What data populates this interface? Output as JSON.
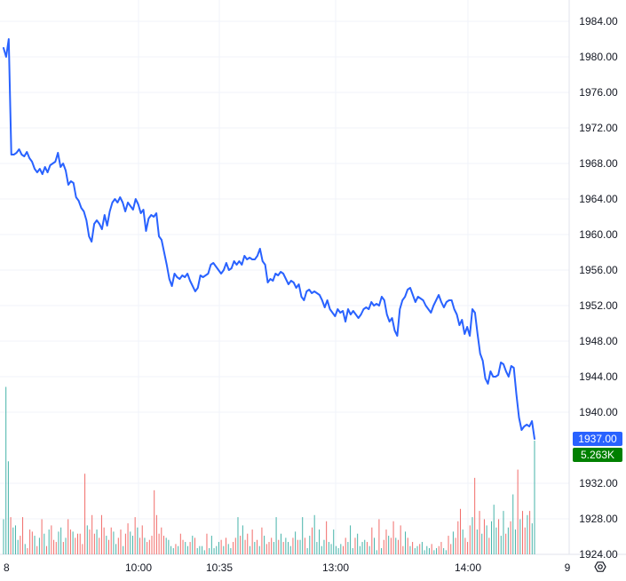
{
  "chart_data": {
    "type": "line",
    "title": "",
    "xlabel": "",
    "ylabel": "",
    "ylim": [
      1924,
      1986
    ],
    "y_ticks": [
      1924,
      1928,
      1932,
      1940,
      1944,
      1948,
      1952,
      1956,
      1960,
      1964,
      1968,
      1972,
      1976,
      1980,
      1984
    ],
    "y_tick_labels": [
      "1924.00",
      "1928.00",
      "1932.00",
      "1940.00",
      "1944.00",
      "1948.00",
      "1952.00",
      "1956.00",
      "1960.00",
      "1964.00",
      "1968.00",
      "1972.00",
      "1976.00",
      "1980.00",
      "1984.00"
    ],
    "x_tick_labels": [
      "8",
      "10:00",
      "10:35",
      "13:00",
      "14:00",
      "9"
    ],
    "grid": true,
    "price_series": {
      "name": "",
      "values": [
        1981.0,
        1980.0,
        1982.0,
        1969.0,
        1969.0,
        1969.2,
        1969.6,
        1969.0,
        1968.8,
        1969.3,
        1968.6,
        1968.2,
        1967.4,
        1967.0,
        1967.4,
        1966.8,
        1967.6,
        1967.0,
        1967.8,
        1968.0,
        1968.2,
        1969.2,
        1967.6,
        1968.0,
        1967.2,
        1965.6,
        1966.0,
        1965.8,
        1964.2,
        1963.8,
        1963.0,
        1962.6,
        1961.6,
        1959.8,
        1959.2,
        1961.2,
        1961.6,
        1961.2,
        1960.6,
        1962.2,
        1961.0,
        1962.6,
        1963.6,
        1964.0,
        1963.6,
        1964.2,
        1963.6,
        1962.6,
        1963.6,
        1963.2,
        1962.8,
        1964.0,
        1963.4,
        1962.4,
        1962.8,
        1960.4,
        1961.8,
        1962.2,
        1962.0,
        1962.4,
        1959.8,
        1959.4,
        1958.0,
        1956.6,
        1955.0,
        1954.2,
        1955.6,
        1955.2,
        1955.0,
        1955.4,
        1955.2,
        1955.6,
        1954.8,
        1954.2,
        1953.6,
        1954.0,
        1955.4,
        1955.2,
        1955.4,
        1955.6,
        1956.6,
        1956.8,
        1956.4,
        1956.0,
        1955.6,
        1956.0,
        1956.8,
        1956.0,
        1956.2,
        1957.0,
        1956.6,
        1957.0,
        1956.6,
        1957.6,
        1957.2,
        1957.4,
        1957.2,
        1957.2,
        1957.6,
        1958.4,
        1957.0,
        1956.6,
        1954.6,
        1955.0,
        1954.8,
        1955.6,
        1955.4,
        1955.8,
        1955.6,
        1955.0,
        1954.4,
        1954.8,
        1954.6,
        1954.0,
        1954.4,
        1953.0,
        1952.6,
        1953.6,
        1953.8,
        1953.4,
        1953.6,
        1953.4,
        1953.2,
        1952.6,
        1951.8,
        1952.6,
        1951.6,
        1951.2,
        1950.8,
        1951.6,
        1951.2,
        1951.4,
        1950.2,
        1951.6,
        1951.0,
        1951.4,
        1951.0,
        1950.6,
        1951.0,
        1951.6,
        1951.8,
        1951.6,
        1952.4,
        1952.0,
        1952.2,
        1952.0,
        1953.0,
        1952.6,
        1951.0,
        1950.2,
        1950.6,
        1949.2,
        1948.6,
        1951.6,
        1952.6,
        1953.0,
        1953.8,
        1954.0,
        1953.2,
        1952.4,
        1953.0,
        1952.8,
        1952.6,
        1952.0,
        1951.6,
        1951.2,
        1952.0,
        1952.6,
        1953.2,
        1952.4,
        1951.8,
        1952.4,
        1952.6,
        1952.6,
        1951.6,
        1951.0,
        1949.8,
        1950.4,
        1948.8,
        1949.6,
        1948.6,
        1951.6,
        1951.2,
        1948.8,
        1946.6,
        1945.8,
        1943.8,
        1943.2,
        1944.6,
        1944.0,
        1944.0,
        1944.2,
        1945.6,
        1945.4,
        1944.6,
        1944.0,
        1945.2,
        1945.0,
        1942.0,
        1939.4,
        1938.0,
        1938.4,
        1938.6,
        1938.4,
        1939.0,
        1937.0
      ]
    },
    "volume_series": {
      "name": "",
      "bars": [
        [
          3.4,
          "g"
        ],
        [
          16.2,
          "g"
        ],
        [
          9.0,
          "g"
        ],
        [
          3.6,
          "r"
        ],
        [
          2.6,
          "g"
        ],
        [
          2.8,
          "g"
        ],
        [
          1.4,
          "g"
        ],
        [
          1.8,
          "r"
        ],
        [
          3.6,
          "r"
        ],
        [
          1.0,
          "g"
        ],
        [
          0.6,
          "r"
        ],
        [
          2.4,
          "r"
        ],
        [
          2.2,
          "r"
        ],
        [
          1.8,
          "g"
        ],
        [
          0.8,
          "r"
        ],
        [
          1.6,
          "g"
        ],
        [
          3.4,
          "r"
        ],
        [
          2.0,
          "g"
        ],
        [
          0.8,
          "r"
        ],
        [
          2.4,
          "g"
        ],
        [
          2.8,
          "r"
        ],
        [
          1.4,
          "r"
        ],
        [
          1.2,
          "r"
        ],
        [
          2.2,
          "g"
        ],
        [
          2.6,
          "g"
        ],
        [
          1.2,
          "r"
        ],
        [
          1.6,
          "g"
        ],
        [
          3.4,
          "r"
        ],
        [
          2.4,
          "r"
        ],
        [
          2.2,
          "g"
        ],
        [
          1.6,
          "r"
        ],
        [
          2.0,
          "r"
        ],
        [
          2.0,
          "r"
        ],
        [
          1.0,
          "r"
        ],
        [
          7.8,
          "r"
        ],
        [
          2.8,
          "g"
        ],
        [
          2.4,
          "r"
        ],
        [
          3.8,
          "r"
        ],
        [
          2.0,
          "r"
        ],
        [
          2.4,
          "g"
        ],
        [
          1.6,
          "r"
        ],
        [
          3.8,
          "r"
        ],
        [
          2.6,
          "r"
        ],
        [
          1.8,
          "g"
        ],
        [
          1.4,
          "r"
        ],
        [
          2.6,
          "r"
        ],
        [
          2.2,
          "g"
        ],
        [
          1.0,
          "g"
        ],
        [
          1.6,
          "r"
        ],
        [
          2.4,
          "r"
        ],
        [
          0.8,
          "g"
        ],
        [
          2.0,
          "r"
        ],
        [
          3.0,
          "r"
        ],
        [
          2.2,
          "g"
        ],
        [
          1.8,
          "g"
        ],
        [
          3.6,
          "r"
        ],
        [
          2.6,
          "g"
        ],
        [
          1.6,
          "r"
        ],
        [
          2.8,
          "r"
        ],
        [
          1.6,
          "g"
        ],
        [
          1.2,
          "r"
        ],
        [
          1.4,
          "r"
        ],
        [
          1.8,
          "r"
        ],
        [
          6.2,
          "r"
        ],
        [
          3.8,
          "r"
        ],
        [
          2.0,
          "r"
        ],
        [
          2.6,
          "r"
        ],
        [
          1.8,
          "r"
        ],
        [
          1.6,
          "g"
        ],
        [
          1.4,
          "g"
        ],
        [
          0.8,
          "g"
        ],
        [
          0.6,
          "g"
        ],
        [
          1.0,
          "r"
        ],
        [
          0.8,
          "g"
        ],
        [
          2.0,
          "r"
        ],
        [
          1.4,
          "r"
        ],
        [
          1.2,
          "g"
        ],
        [
          0.8,
          "g"
        ],
        [
          1.2,
          "r"
        ],
        [
          1.8,
          "g"
        ],
        [
          1.6,
          "r"
        ],
        [
          0.6,
          "g"
        ],
        [
          0.8,
          "g"
        ],
        [
          0.8,
          "g"
        ],
        [
          0.4,
          "g"
        ],
        [
          2.0,
          "r"
        ],
        [
          0.6,
          "g"
        ],
        [
          1.8,
          "g"
        ],
        [
          0.6,
          "g"
        ],
        [
          0.8,
          "g"
        ],
        [
          1.2,
          "g"
        ],
        [
          1.4,
          "r"
        ],
        [
          0.8,
          "g"
        ],
        [
          1.6,
          "r"
        ],
        [
          1.0,
          "g"
        ],
        [
          0.6,
          "g"
        ],
        [
          1.2,
          "r"
        ],
        [
          1.6,
          "r"
        ],
        [
          3.6,
          "g"
        ],
        [
          1.8,
          "r"
        ],
        [
          2.8,
          "g"
        ],
        [
          1.4,
          "r"
        ],
        [
          2.0,
          "r"
        ],
        [
          0.8,
          "g"
        ],
        [
          2.4,
          "r"
        ],
        [
          1.2,
          "g"
        ],
        [
          1.4,
          "r"
        ],
        [
          0.8,
          "g"
        ],
        [
          2.6,
          "r"
        ],
        [
          1.8,
          "g"
        ],
        [
          1.0,
          "r"
        ],
        [
          1.2,
          "r"
        ],
        [
          1.6,
          "r"
        ],
        [
          1.2,
          "g"
        ],
        [
          3.6,
          "g"
        ],
        [
          1.4,
          "r"
        ],
        [
          2.0,
          "g"
        ],
        [
          1.2,
          "r"
        ],
        [
          1.6,
          "g"
        ],
        [
          1.2,
          "g"
        ],
        [
          0.8,
          "g"
        ],
        [
          1.6,
          "r"
        ],
        [
          2.2,
          "g"
        ],
        [
          1.4,
          "r"
        ],
        [
          1.4,
          "g"
        ],
        [
          3.6,
          "g"
        ],
        [
          1.6,
          "r"
        ],
        [
          0.6,
          "g"
        ],
        [
          1.8,
          "g"
        ],
        [
          2.6,
          "r"
        ],
        [
          3.8,
          "g"
        ],
        [
          1.2,
          "g"
        ],
        [
          2.4,
          "g"
        ],
        [
          0.8,
          "g"
        ],
        [
          1.4,
          "g"
        ],
        [
          3.2,
          "r"
        ],
        [
          1.2,
          "g"
        ],
        [
          1.0,
          "g"
        ],
        [
          2.4,
          "g"
        ],
        [
          0.8,
          "g"
        ],
        [
          0.6,
          "g"
        ],
        [
          1.0,
          "g"
        ],
        [
          0.8,
          "r"
        ],
        [
          1.6,
          "r"
        ],
        [
          1.2,
          "g"
        ],
        [
          2.8,
          "g"
        ],
        [
          0.6,
          "g"
        ],
        [
          1.6,
          "r"
        ],
        [
          2.0,
          "g"
        ],
        [
          0.8,
          "g"
        ],
        [
          1.2,
          "g"
        ],
        [
          1.4,
          "g"
        ],
        [
          1.2,
          "r"
        ],
        [
          0.8,
          "g"
        ],
        [
          2.6,
          "r"
        ],
        [
          1.6,
          "g"
        ],
        [
          0.4,
          "g"
        ],
        [
          3.4,
          "r"
        ],
        [
          0.6,
          "g"
        ],
        [
          1.4,
          "r"
        ],
        [
          2.4,
          "r"
        ],
        [
          1.8,
          "g"
        ],
        [
          1.6,
          "r"
        ],
        [
          3.2,
          "r"
        ],
        [
          1.6,
          "g"
        ],
        [
          1.4,
          "r"
        ],
        [
          2.8,
          "r"
        ],
        [
          0.8,
          "r"
        ],
        [
          2.2,
          "g"
        ],
        [
          1.6,
          "r"
        ],
        [
          0.8,
          "g"
        ],
        [
          1.2,
          "r"
        ],
        [
          0.6,
          "g"
        ],
        [
          0.8,
          "g"
        ],
        [
          1.0,
          "r"
        ],
        [
          1.2,
          "g"
        ],
        [
          0.4,
          "g"
        ],
        [
          0.8,
          "g"
        ],
        [
          0.6,
          "g"
        ],
        [
          1.0,
          "r"
        ],
        [
          0.4,
          "g"
        ],
        [
          0.6,
          "g"
        ],
        [
          0.8,
          "r"
        ],
        [
          1.2,
          "r"
        ],
        [
          0.6,
          "g"
        ],
        [
          0.4,
          "g"
        ],
        [
          1.8,
          "r"
        ],
        [
          1.0,
          "r"
        ],
        [
          2.2,
          "g"
        ],
        [
          1.6,
          "r"
        ],
        [
          3.2,
          "r"
        ],
        [
          4.4,
          "r"
        ],
        [
          2.4,
          "g"
        ],
        [
          1.6,
          "r"
        ],
        [
          1.2,
          "r"
        ],
        [
          2.8,
          "r"
        ],
        [
          3.6,
          "g"
        ],
        [
          7.4,
          "r"
        ],
        [
          2.4,
          "g"
        ],
        [
          4.2,
          "r"
        ],
        [
          2.0,
          "g"
        ],
        [
          3.4,
          "r"
        ],
        [
          2.8,
          "g"
        ],
        [
          1.6,
          "r"
        ],
        [
          3.2,
          "g"
        ],
        [
          4.8,
          "g"
        ],
        [
          2.6,
          "g"
        ],
        [
          3.4,
          "r"
        ],
        [
          1.8,
          "g"
        ],
        [
          4.2,
          "g"
        ],
        [
          2.0,
          "r"
        ],
        [
          2.6,
          "g"
        ],
        [
          3.2,
          "r"
        ],
        [
          5.8,
          "g"
        ],
        [
          2.4,
          "g"
        ],
        [
          8.2,
          "r"
        ],
        [
          3.4,
          "g"
        ],
        [
          4.2,
          "r"
        ],
        [
          2.6,
          "r"
        ],
        [
          3.8,
          "g"
        ],
        [
          4.2,
          "r"
        ],
        [
          3.0,
          "g"
        ],
        [
          11.0,
          "g"
        ]
      ]
    },
    "last_price_label": "1937.00",
    "last_volume_label": "5.263K",
    "colors": {
      "line": "#2962ff",
      "price_tag": "#2962ff",
      "volume_tag": "#008000",
      "volume_up": "#26a69a",
      "volume_down": "#ef5350",
      "grid": "#f0f3fa",
      "text": "#131722",
      "background": "#ffffff"
    }
  },
  "controls": {
    "settings_icon": "gear-icon"
  }
}
